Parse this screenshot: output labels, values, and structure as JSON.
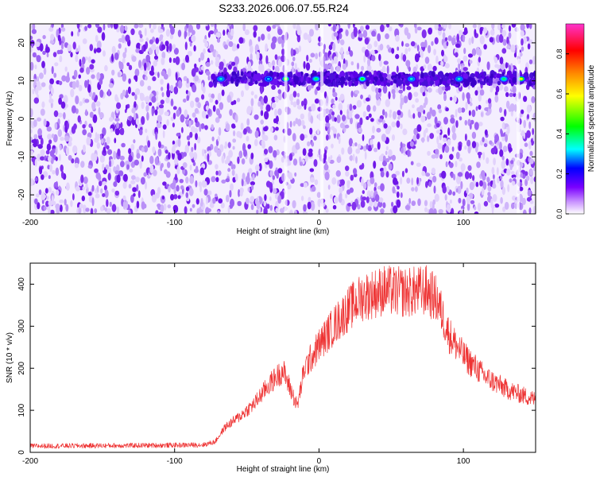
{
  "title": "S233.2026.006.07.55.R24",
  "chart_data": [
    {
      "type": "heatmap",
      "xlabel": "Height of straight line (km)",
      "ylabel": "Frequency (Hz)",
      "xlim": [
        -200,
        150
      ],
      "ylim": [
        -25,
        25
      ],
      "xticks": [
        -200,
        -100,
        0,
        100
      ],
      "yticks": [
        -20,
        -10,
        0,
        10,
        20
      ],
      "colorbar": {
        "label": "Normalized spectral amplitude",
        "range": [
          0,
          0.95
        ],
        "ticks": [
          "0.0",
          "0.2",
          "0.4",
          "0.6",
          "0.8"
        ],
        "colors": [
          "#ffffff",
          "#cc99ff",
          "#7a00ff",
          "#0000ff",
          "#00ffff",
          "#00ff00",
          "#ffff00",
          "#ff8800",
          "#ff0000",
          "#ff33cc"
        ]
      },
      "signal_band": {
        "frequency_center": 10.5,
        "frequency_width": 2.5,
        "x_start": -75,
        "x_end": 150,
        "peaks": [
          {
            "x": -68,
            "amp": 0.35
          },
          {
            "x": -35,
            "amp": 0.3
          },
          {
            "x": -23,
            "amp": 0.55
          },
          {
            "x": -2,
            "amp": 0.4
          },
          {
            "x": 30,
            "amp": 0.45
          },
          {
            "x": 64,
            "amp": 0.35
          },
          {
            "x": 97,
            "amp": 0.35
          },
          {
            "x": 128,
            "amp": 0.4
          },
          {
            "x": 140,
            "amp": 0.6
          }
        ]
      },
      "gaps_x": [
        -23,
        2,
        138
      ]
    },
    {
      "type": "line",
      "xlabel": "Height of straight line (km)",
      "ylabel": "SNR (10 * v/v)",
      "xlim": [
        -200,
        150
      ],
      "ylim": [
        0,
        450
      ],
      "xticks": [
        -200,
        -100,
        0,
        100
      ],
      "yticks": [
        0,
        100,
        200,
        300,
        400
      ],
      "color": "#ee3333",
      "envelope": [
        {
          "x": -200,
          "y": 15
        },
        {
          "x": -150,
          "y": 16
        },
        {
          "x": -100,
          "y": 17
        },
        {
          "x": -80,
          "y": 18
        },
        {
          "x": -72,
          "y": 25
        },
        {
          "x": -65,
          "y": 60
        },
        {
          "x": -55,
          "y": 85
        },
        {
          "x": -45,
          "y": 115
        },
        {
          "x": -35,
          "y": 160
        },
        {
          "x": -25,
          "y": 195
        },
        {
          "x": -15,
          "y": 110
        },
        {
          "x": -10,
          "y": 200
        },
        {
          "x": 0,
          "y": 255
        },
        {
          "x": 10,
          "y": 300
        },
        {
          "x": 20,
          "y": 340
        },
        {
          "x": 30,
          "y": 370
        },
        {
          "x": 45,
          "y": 385
        },
        {
          "x": 60,
          "y": 380
        },
        {
          "x": 75,
          "y": 385
        },
        {
          "x": 82,
          "y": 360
        },
        {
          "x": 90,
          "y": 280
        },
        {
          "x": 100,
          "y": 230
        },
        {
          "x": 115,
          "y": 180
        },
        {
          "x": 130,
          "y": 150
        },
        {
          "x": 150,
          "y": 125
        }
      ]
    }
  ]
}
